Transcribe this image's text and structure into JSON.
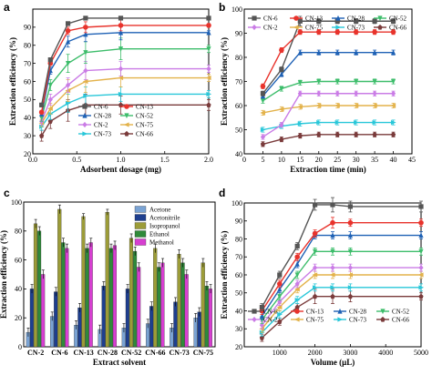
{
  "chart_data": [
    {
      "panel": "a",
      "type": "line",
      "xlabel": "Adsorbent dosage (mg)",
      "ylabel": "Extraction efficiency (%)",
      "xlim": [
        0.0,
        2.0
      ],
      "ylim": [
        20,
        100
      ],
      "xticks": [
        0.0,
        0.5,
        1.0,
        1.5,
        2.0
      ],
      "yticks": [
        20,
        30,
        40,
        50,
        60,
        70,
        80,
        90
      ],
      "xtick_labels": [
        "0.0",
        "0.5",
        "1.0",
        "1.5",
        "2.0"
      ],
      "ytick_labels": [
        "20",
        "30",
        "40",
        "50",
        "60",
        "70",
        "80",
        "90"
      ],
      "x": [
        0.1,
        0.2,
        0.4,
        0.6,
        1.0,
        2.0
      ],
      "legend": "top-right, 2 columns",
      "series": [
        {
          "name": "CN-6",
          "color": "#555555",
          "values": [
            47,
            72,
            92,
            95,
            95,
            95
          ],
          "err": [
            1,
            1,
            1,
            1,
            1,
            1
          ]
        },
        {
          "name": "CN-13",
          "color": "#e8332c",
          "values": [
            43,
            70,
            88,
            90,
            91,
            91
          ],
          "err": [
            1,
            1,
            2,
            3,
            3,
            1
          ]
        },
        {
          "name": "CN-28",
          "color": "#1e61b5",
          "values": [
            42,
            66,
            82,
            86,
            87,
            87
          ],
          "err": [
            1,
            2,
            3,
            4,
            4,
            1
          ]
        },
        {
          "name": "CN-52",
          "color": "#3dbd6b",
          "values": [
            40,
            58,
            70,
            76,
            78,
            78
          ],
          "err": [
            2,
            3,
            5,
            6,
            6,
            2
          ]
        },
        {
          "name": "CN-2",
          "color": "#ca7ce6",
          "values": [
            38,
            50,
            58,
            66,
            67,
            67
          ],
          "err": [
            2,
            3,
            4,
            5,
            4,
            2
          ]
        },
        {
          "name": "CN-75",
          "color": "#e3b24a",
          "values": [
            37,
            45,
            55,
            60,
            62,
            62
          ],
          "err": [
            2,
            3,
            6,
            6,
            5,
            2
          ]
        },
        {
          "name": "CN-73",
          "color": "#29c7d9",
          "values": [
            35,
            42,
            48,
            52,
            53,
            53
          ],
          "err": [
            2,
            3,
            5,
            5,
            4,
            2
          ]
        },
        {
          "name": "CN-66",
          "color": "#7a3b3b",
          "values": [
            30,
            38,
            44,
            47,
            47,
            47
          ],
          "err": [
            3,
            4,
            6,
            6,
            5,
            3
          ]
        }
      ]
    },
    {
      "panel": "b",
      "type": "line",
      "xlabel": "Extraction time (min)",
      "ylabel": "Extraction efficiency (%)",
      "xlim": [
        0,
        45
      ],
      "ylim": [
        40,
        100
      ],
      "xticks": [
        0,
        5,
        10,
        15,
        20,
        25,
        30,
        35,
        40,
        45
      ],
      "yticks": [
        40,
        50,
        60,
        70,
        80,
        90,
        100
      ],
      "xtick_labels": [
        "0",
        "5",
        "10",
        "15",
        "20",
        "25",
        "30",
        "35",
        "40",
        "45"
      ],
      "ytick_labels": [
        "40",
        "50",
        "60",
        "70",
        "80",
        "90",
        "100"
      ],
      "x": [
        5,
        10,
        15,
        20,
        25,
        30,
        35,
        40
      ],
      "legend": "top, 4 columns",
      "series": [
        {
          "name": "CN-6",
          "color": "#555555",
          "values": [
            65,
            75,
            95,
            95,
            95,
            95,
            95,
            95
          ],
          "err": [
            1,
            1,
            2,
            1,
            1,
            1,
            1,
            1
          ]
        },
        {
          "name": "CN-13",
          "color": "#e8332c",
          "values": [
            68,
            83,
            90.5,
            90.5,
            90.5,
            90.5,
            90.5,
            90.5
          ],
          "err": [
            1,
            1,
            1,
            1,
            1,
            1,
            1,
            1
          ]
        },
        {
          "name": "CN-28",
          "color": "#1e61b5",
          "values": [
            64,
            73,
            82,
            82,
            82,
            82,
            82,
            82
          ],
          "err": [
            1,
            1,
            1,
            1,
            1,
            1,
            1,
            1
          ]
        },
        {
          "name": "CN-52",
          "color": "#3dbd6b",
          "values": [
            62,
            67,
            69.5,
            70,
            70,
            70,
            70,
            70
          ],
          "err": [
            1,
            1,
            1,
            1,
            1,
            1,
            1,
            1
          ]
        },
        {
          "name": "CN-2",
          "color": "#ca7ce6",
          "values": [
            47,
            52,
            65,
            65,
            65,
            65,
            65,
            65
          ],
          "err": [
            1,
            1,
            1,
            1,
            1,
            1,
            1,
            1
          ]
        },
        {
          "name": "CN-75",
          "color": "#e3b24a",
          "values": [
            57,
            58.5,
            59.5,
            60,
            60,
            60,
            60,
            60
          ],
          "err": [
            1,
            1,
            1,
            1,
            1,
            1,
            1,
            1
          ]
        },
        {
          "name": "CN-73",
          "color": "#29c7d9",
          "values": [
            50,
            51.5,
            52.5,
            53,
            53,
            53,
            53,
            53
          ],
          "err": [
            1,
            1,
            1,
            1,
            1,
            1,
            1,
            1
          ]
        },
        {
          "name": "CN-66",
          "color": "#7a3b3b",
          "values": [
            44,
            46,
            47.5,
            48,
            48,
            48,
            48,
            48
          ],
          "err": [
            1,
            1,
            1,
            1,
            1,
            1,
            1,
            1
          ]
        }
      ]
    },
    {
      "panel": "c",
      "type": "bar",
      "xlabel": "Extract solvent",
      "ylabel": "Extraction efficiency (%)",
      "ylim": [
        0,
        100
      ],
      "yticks": [
        0,
        20,
        40,
        60,
        80,
        100
      ],
      "ytick_labels": [
        "0",
        "20",
        "40",
        "60",
        "80",
        "100"
      ],
      "categories": [
        "CN-2",
        "CN-6",
        "CN-13",
        "CN-28",
        "CN-52",
        "CN-66",
        "CN-73",
        "CN-75"
      ],
      "legend": "top-right",
      "series": [
        {
          "name": "Acetone",
          "color": "#7aa3d4",
          "values": [
            10,
            21,
            15,
            12,
            13,
            16,
            13,
            20
          ],
          "err": [
            3,
            3,
            3,
            3,
            3,
            3,
            3,
            3
          ]
        },
        {
          "name": "Acetonitrile",
          "color": "#1e3f8f",
          "values": [
            40,
            38,
            27,
            42,
            40,
            28,
            31,
            24
          ],
          "err": [
            3,
            3,
            3,
            3,
            3,
            3,
            3,
            3
          ]
        },
        {
          "name": "Isopropanol",
          "color": "#9c9c38",
          "values": [
            85,
            95,
            90,
            93,
            75,
            68,
            64,
            58
          ],
          "err": [
            3,
            3,
            2,
            2,
            3,
            3,
            3,
            3
          ]
        },
        {
          "name": "Ethanol",
          "color": "#2f8a3a",
          "values": [
            80,
            72,
            68,
            68,
            66,
            55,
            58,
            42
          ],
          "err": [
            3,
            3,
            3,
            3,
            3,
            3,
            3,
            3
          ]
        },
        {
          "name": "Methanol",
          "color": "#d63fd0",
          "values": [
            50,
            68,
            72,
            70,
            55,
            58,
            50,
            40
          ],
          "err": [
            3,
            3,
            3,
            3,
            3,
            3,
            3,
            3
          ]
        }
      ]
    },
    {
      "panel": "d",
      "type": "line",
      "xlabel": "Volume (μL)",
      "ylabel": "Extraction efficiency (%)",
      "xlim": [
        0,
        5000
      ],
      "ylim": [
        20,
        100
      ],
      "xticks": [
        1000,
        2000,
        3000,
        4000,
        5000
      ],
      "yticks": [
        20,
        30,
        40,
        50,
        60,
        70,
        80,
        90,
        100
      ],
      "xtick_labels": [
        "1000",
        "2000",
        "3000",
        "4000",
        "5000"
      ],
      "ytick_labels": [
        "20",
        "30",
        "40",
        "50",
        "60",
        "70",
        "80",
        "90",
        "100"
      ],
      "x": [
        500,
        1000,
        1500,
        2000,
        2500,
        3000,
        5000
      ],
      "legend": "bottom, 4 columns",
      "series": [
        {
          "name": "CN-6",
          "color": "#555555",
          "values": [
            42,
            60,
            76,
            99,
            99,
            98,
            98
          ],
          "err": [
            2,
            2,
            2,
            3,
            4,
            3,
            3
          ]
        },
        {
          "name": "CN-13",
          "color": "#e8332c",
          "values": [
            40,
            55,
            70,
            83,
            89,
            89,
            89
          ],
          "err": [
            2,
            2,
            2,
            2,
            3,
            2,
            2
          ]
        },
        {
          "name": "CN-28",
          "color": "#1e61b5",
          "values": [
            37,
            52,
            66,
            82,
            82,
            82,
            82
          ],
          "err": [
            2,
            2,
            2,
            2,
            2,
            2,
            2
          ]
        },
        {
          "name": "CN-52",
          "color": "#3dbd6b",
          "values": [
            35,
            48,
            60,
            73,
            73,
            73,
            73
          ],
          "err": [
            2,
            2,
            2,
            2,
            2,
            2,
            2
          ]
        },
        {
          "name": "CN-2",
          "color": "#ca7ce6",
          "values": [
            32,
            45,
            55,
            64,
            64,
            64,
            64
          ],
          "err": [
            2,
            2,
            2,
            2,
            2,
            2,
            2
          ]
        },
        {
          "name": "CN-75",
          "color": "#e3b24a",
          "values": [
            30,
            42,
            52,
            60,
            60,
            60,
            60
          ],
          "err": [
            2,
            2,
            2,
            2,
            2,
            2,
            2
          ]
        },
        {
          "name": "CN-73",
          "color": "#29c7d9",
          "values": [
            28,
            38,
            46,
            53,
            53,
            53,
            53
          ],
          "err": [
            2,
            2,
            2,
            2,
            2,
            2,
            2
          ]
        },
        {
          "name": "CN-66",
          "color": "#7a3b3b",
          "values": [
            25,
            34,
            42,
            48,
            48,
            48,
            48
          ],
          "err": [
            2,
            2,
            2,
            4,
            4,
            3,
            2
          ]
        }
      ]
    }
  ]
}
